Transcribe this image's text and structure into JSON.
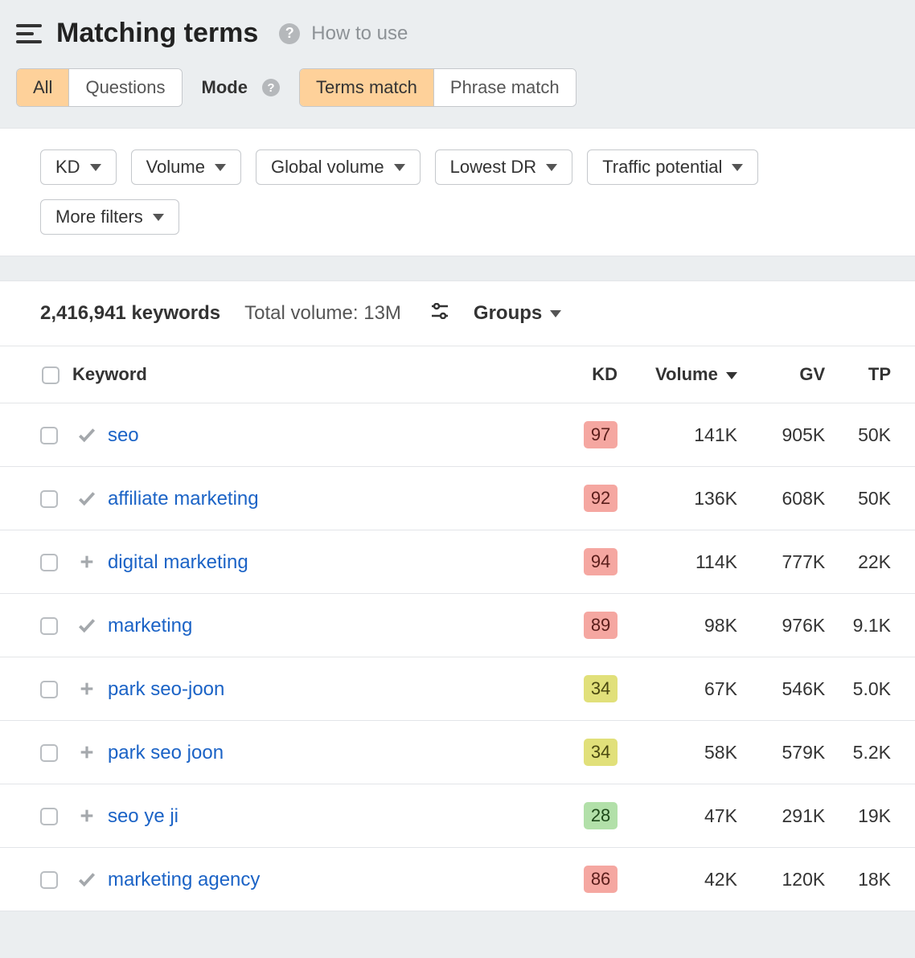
{
  "header": {
    "title": "Matching terms",
    "how_to_use": "How to use"
  },
  "tabs": {
    "scope": {
      "all": "All",
      "questions": "Questions",
      "active": "all"
    },
    "mode_label": "Mode",
    "mode": {
      "terms": "Terms match",
      "phrase": "Phrase match",
      "active": "terms"
    }
  },
  "filters": {
    "items": [
      "KD",
      "Volume",
      "Global volume",
      "Lowest DR",
      "Traffic potential",
      "More filters"
    ]
  },
  "summary": {
    "count": "2,416,941 keywords",
    "total_volume": "Total volume: 13M",
    "groups_label": "Groups"
  },
  "table": {
    "columns": {
      "keyword": "Keyword",
      "kd": "KD",
      "volume": "Volume",
      "gv": "GV",
      "tp": "TP"
    },
    "sorted_by": "volume",
    "kd_colors": {
      "hard": {
        "bg": "#f5a7a1",
        "text": "#5a1d1a"
      },
      "medium": {
        "bg": "#e1e07a",
        "text": "#4a4810"
      },
      "easy": {
        "bg": "#b2e0a9",
        "text": "#1e4a1a"
      }
    },
    "rows": [
      {
        "icon": "check",
        "keyword": "seo",
        "kd": 97,
        "kd_tier": "hard",
        "volume": "141K",
        "gv": "905K",
        "tp": "50K"
      },
      {
        "icon": "check",
        "keyword": "affiliate marketing",
        "kd": 92,
        "kd_tier": "hard",
        "volume": "136K",
        "gv": "608K",
        "tp": "50K"
      },
      {
        "icon": "plus",
        "keyword": "digital marketing",
        "kd": 94,
        "kd_tier": "hard",
        "volume": "114K",
        "gv": "777K",
        "tp": "22K"
      },
      {
        "icon": "check",
        "keyword": "marketing",
        "kd": 89,
        "kd_tier": "hard",
        "volume": "98K",
        "gv": "976K",
        "tp": "9.1K"
      },
      {
        "icon": "plus",
        "keyword": "park seo-joon",
        "kd": 34,
        "kd_tier": "medium",
        "volume": "67K",
        "gv": "546K",
        "tp": "5.0K"
      },
      {
        "icon": "plus",
        "keyword": "park seo joon",
        "kd": 34,
        "kd_tier": "medium",
        "volume": "58K",
        "gv": "579K",
        "tp": "5.2K"
      },
      {
        "icon": "plus",
        "keyword": "seo ye ji",
        "kd": 28,
        "kd_tier": "easy",
        "volume": "47K",
        "gv": "291K",
        "tp": "19K"
      },
      {
        "icon": "check",
        "keyword": "marketing agency",
        "kd": 86,
        "kd_tier": "hard",
        "volume": "42K",
        "gv": "120K",
        "tp": "18K"
      }
    ]
  }
}
